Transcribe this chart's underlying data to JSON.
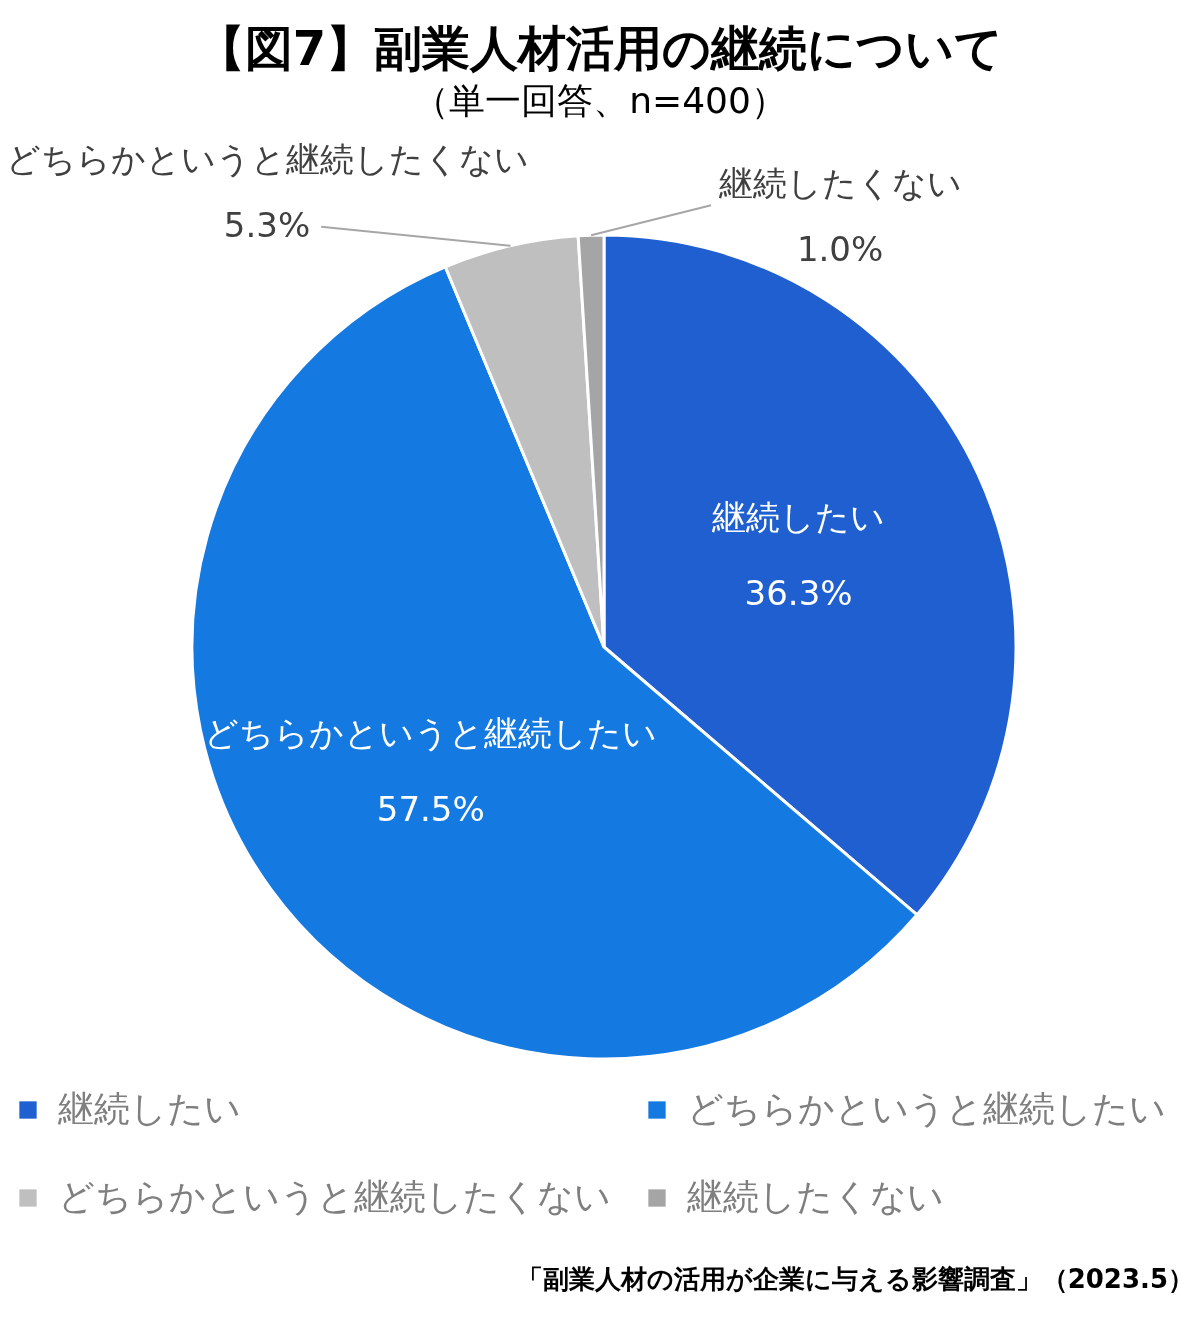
{
  "chart_data": {
    "type": "pie",
    "title": "【図7】副業人材活用の継続について",
    "subtitle": "（単一回答、n=400）",
    "categories": [
      "継続したい",
      "どちらかというと継続したい",
      "どちらかというと継続したくない",
      "継続したくない"
    ],
    "values": [
      36.3,
      57.5,
      5.3,
      1.0
    ],
    "colors": [
      "#1f5fcf",
      "#1479e0",
      "#bfbfbf",
      "#a5a5a5"
    ],
    "value_labels": [
      "36.3%",
      "57.5%",
      "5.3%",
      "1.0%"
    ],
    "legend": "bottom",
    "annotations": [
      "「副業人材の活用が企業に与える影響調査」（2023.5）"
    ]
  }
}
